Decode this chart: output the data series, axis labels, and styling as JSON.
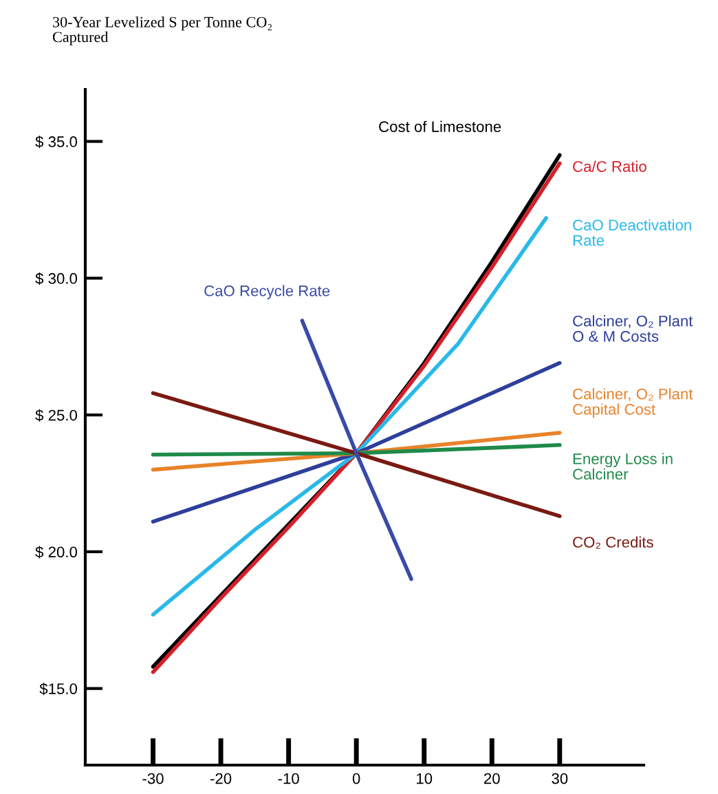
{
  "chart_data": {
    "type": "line",
    "ylabel": "30-Year Levelized S per Tonne CO₂\nCaptured",
    "xlim": [
      -40,
      42.4
    ],
    "ylim": [
      12.2,
      36.9
    ],
    "xticks": [
      -30,
      -20,
      -10,
      0,
      10,
      20,
      30
    ],
    "yticks": [
      {
        "value": 15,
        "label": "$15.0"
      },
      {
        "value": 20,
        "label": "$ 20.0"
      },
      {
        "value": 25,
        "label": "$ 25.0"
      },
      {
        "value": 30,
        "label": "$ 30.0"
      },
      {
        "value": 35,
        "label": "$ 35.0"
      }
    ],
    "grid": false,
    "legend": false,
    "marker": "none",
    "line_style": "solid",
    "series": [
      {
        "name": "Cost of Limestone",
        "color": "#000000",
        "x": [
          -30,
          -20,
          -10,
          0,
          10,
          20,
          30
        ],
        "values": [
          15.8,
          18.4,
          21.0,
          23.6,
          26.9,
          30.6,
          34.5
        ]
      },
      {
        "name": "Ca/C Ratio",
        "color": "#d4202a",
        "x": [
          -30,
          -20,
          -10,
          0,
          10,
          20,
          30
        ],
        "values": [
          15.6,
          18.3,
          20.9,
          23.6,
          26.8,
          30.4,
          34.2
        ]
      },
      {
        "name": "CaO Deactivation\nRate",
        "color": "#29b9ea",
        "x": [
          -30,
          -15,
          0,
          15,
          28
        ],
        "values": [
          17.7,
          20.8,
          23.6,
          27.6,
          32.2
        ]
      },
      {
        "name": "Calciner, O₂ Plant\nO & M Costs",
        "color": "#2e3f9b",
        "x": [
          -30,
          0,
          30
        ],
        "values": [
          21.1,
          23.6,
          26.9
        ]
      },
      {
        "name": "Calciner, O₂ Plant\nCapital Cost",
        "color": "#e8832a",
        "x": [
          -30,
          0,
          30
        ],
        "values": [
          23.0,
          23.6,
          24.35
        ]
      },
      {
        "name": "Energy Loss in\nCalciner",
        "color": "#1f8a4a",
        "x": [
          -30,
          0,
          30
        ],
        "values": [
          23.55,
          23.6,
          23.9
        ]
      },
      {
        "name": "CO₂ Credits",
        "color": "#7a1a12",
        "x": [
          -30,
          0,
          30
        ],
        "values": [
          25.8,
          23.6,
          21.3
        ]
      },
      {
        "name": "CaO Recycle Rate",
        "color": "#3a4aa8",
        "x": [
          -8,
          0,
          8.1
        ],
        "values": [
          28.45,
          23.6,
          19.0
        ]
      }
    ]
  }
}
